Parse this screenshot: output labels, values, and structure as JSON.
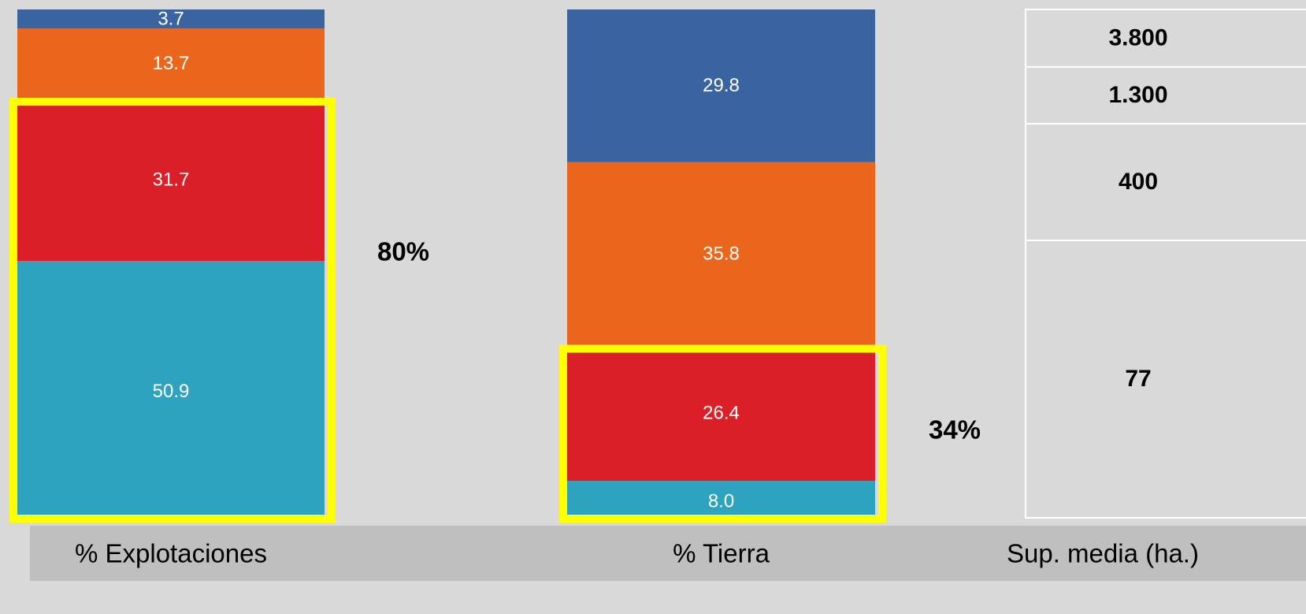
{
  "chart_data": {
    "type": "stacked_bar",
    "categories": [
      "% Explotaciones",
      "% Tierra"
    ],
    "ylim": [
      0,
      100
    ],
    "series": [
      {
        "color": "#2ea3c0",
        "values": [
          50.9,
          8.0
        ],
        "value_labels": [
          "50.9",
          "8.0"
        ]
      },
      {
        "color": "#da1f28",
        "values": [
          31.7,
          26.4
        ]
      },
      {
        "color": "#e9661c",
        "values": [
          13.7,
          35.8
        ]
      },
      {
        "color": "#3a64a0",
        "values": [
          3.7,
          29.8
        ]
      }
    ],
    "annotations": [
      "80%",
      "34%"
    ],
    "highlight_color": "#ffff00",
    "table": {
      "label": "Sup. media (ha.)",
      "cells": [
        "3.800",
        "1.300",
        "400",
        "77"
      ]
    }
  }
}
